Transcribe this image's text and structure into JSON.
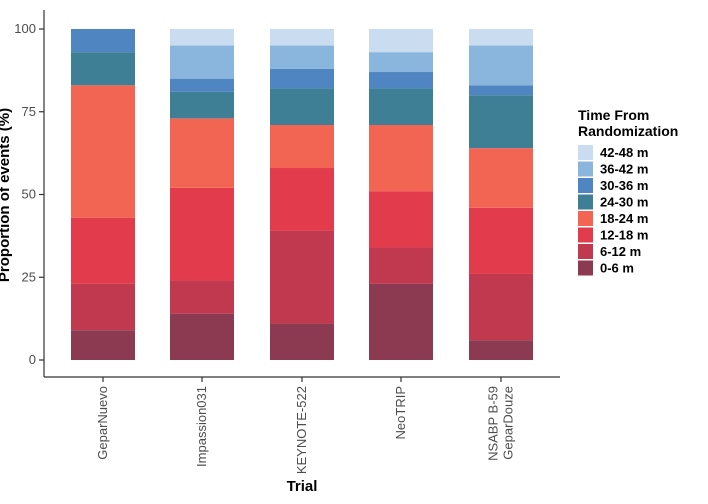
{
  "chart_data": {
    "type": "bar",
    "stacked": true,
    "xlabel": "Trial",
    "ylabel": "Proportion of events (%)",
    "ylim": [
      0,
      100
    ],
    "yticks": [
      0,
      25,
      50,
      75,
      100
    ],
    "grid": false,
    "legend_position": "right",
    "legend_title": [
      "Time From",
      "Randomization"
    ],
    "categories": [
      [
        "GeparNuevo"
      ],
      [
        "Impassion031"
      ],
      [
        "KEYNOTE-522"
      ],
      [
        "NeoTRIP"
      ],
      [
        "NSABP B-59",
        "GeparDouze"
      ]
    ],
    "series": [
      {
        "name": "0-6 m",
        "color": "#8b3a52",
        "values": [
          9,
          14,
          11,
          23,
          6
        ]
      },
      {
        "name": "6-12 m",
        "color": "#c0394f",
        "values": [
          14,
          10,
          28,
          11,
          20
        ]
      },
      {
        "name": "12-18 m",
        "color": "#e13b4c",
        "values": [
          20,
          28,
          19,
          17,
          20
        ]
      },
      {
        "name": "18-24 m",
        "color": "#f26552",
        "values": [
          40,
          21,
          13,
          20,
          18
        ]
      },
      {
        "name": "24-30 m",
        "color": "#3e7f95",
        "values": [
          10,
          8,
          11,
          11,
          16
        ]
      },
      {
        "name": "30-36 m",
        "color": "#4f86c2",
        "values": [
          7,
          4,
          6,
          5,
          3
        ]
      },
      {
        "name": "36-42 m",
        "color": "#8ab6dd",
        "values": [
          0,
          10,
          7,
          6,
          12
        ]
      },
      {
        "name": "42-48 m",
        "color": "#c9dcf0",
        "values": [
          0,
          5,
          5,
          7,
          5
        ]
      }
    ]
  }
}
